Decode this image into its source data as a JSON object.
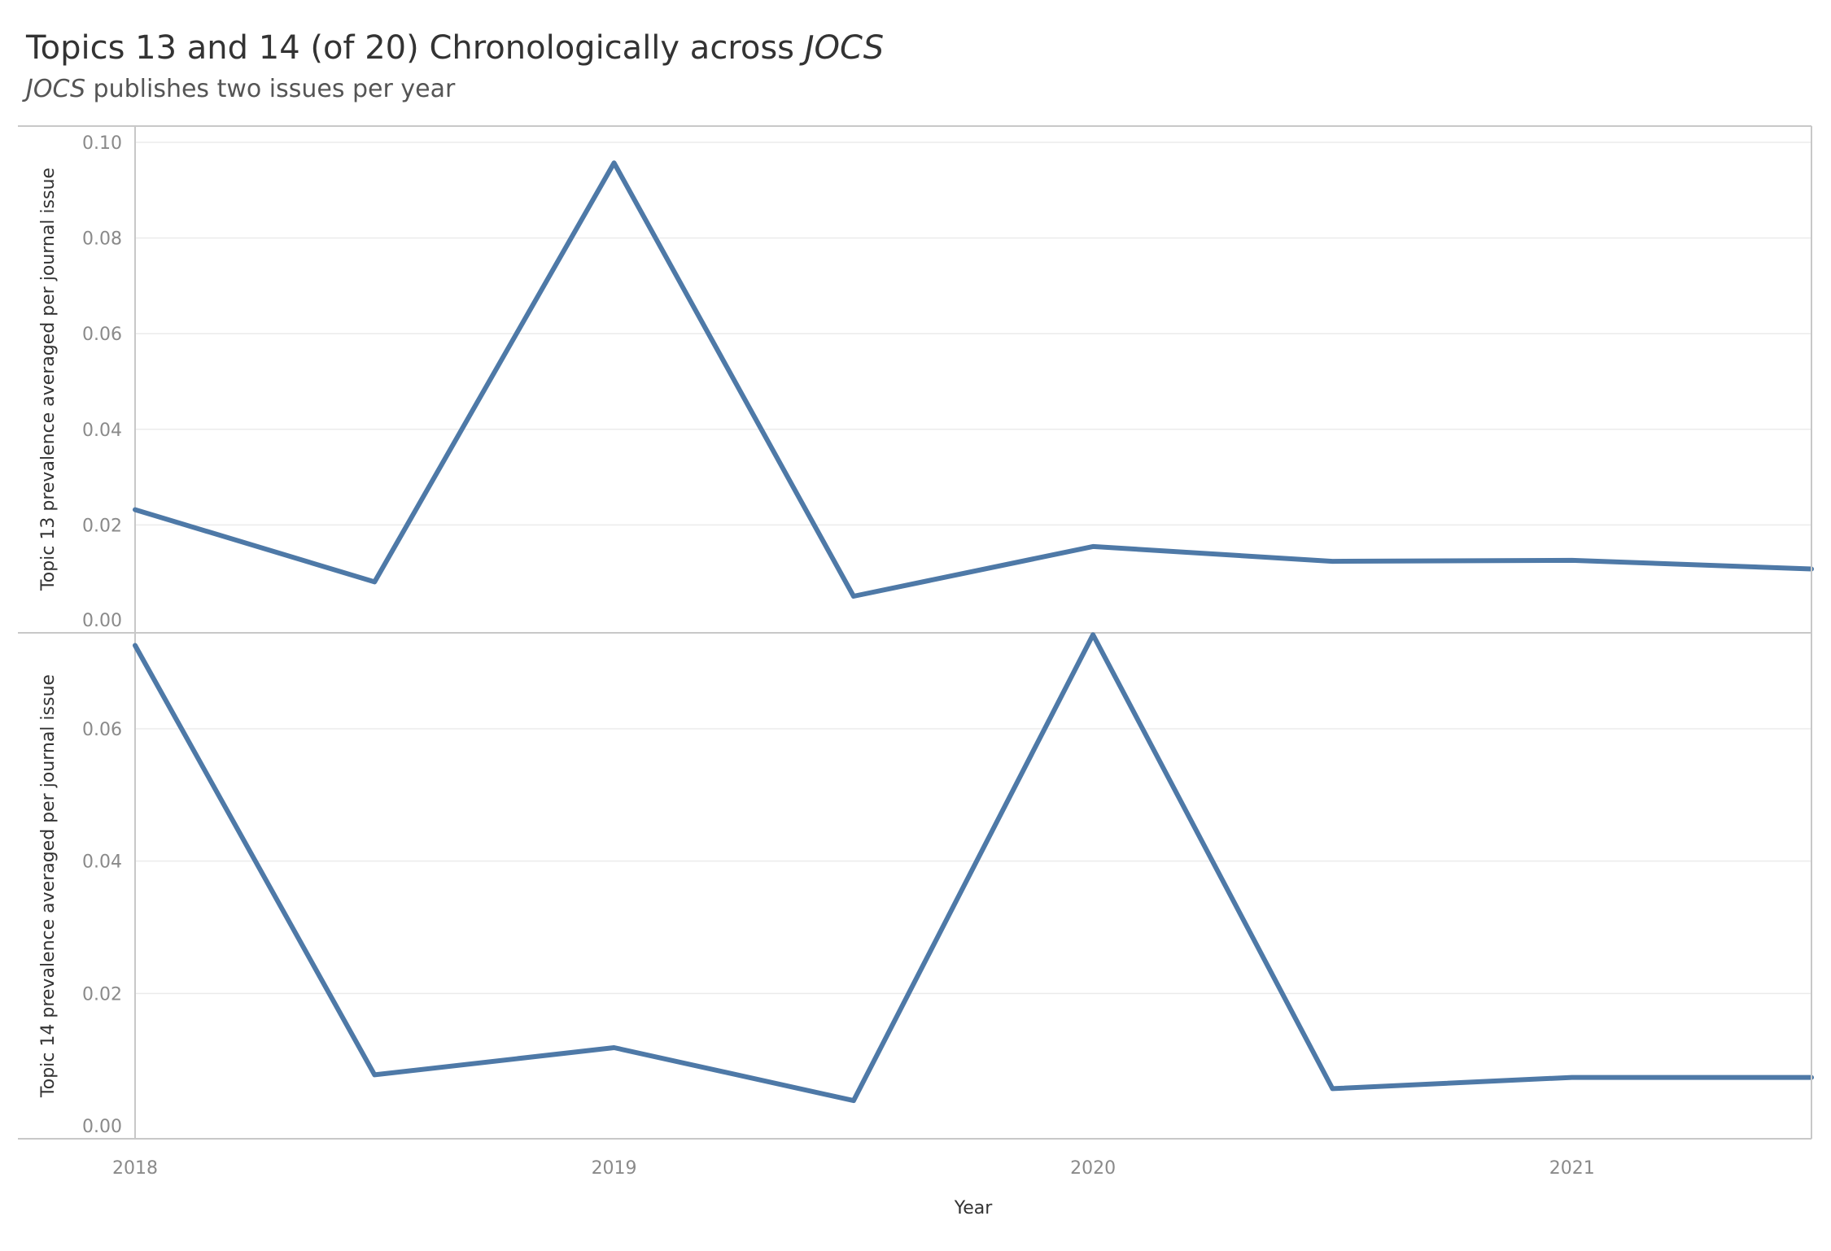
{
  "header": {
    "title_main": "Topics 13 and 14 (of 20) Chronologically across ",
    "title_italic": "JOCS",
    "subtitle_italic": "JOCS",
    "subtitle_rest": " publishes two issues per year"
  },
  "colors": {
    "line": "#4e79a7",
    "grid": "#ebebeb",
    "border": "#c8c8c8",
    "tick_text": "#8a8a8a",
    "axis_title": "#333333"
  },
  "chart_data": [
    {
      "type": "line",
      "ylabel": "Topic 13 prevalence averaged per journal issue",
      "ylim": [
        0.0,
        0.1
      ],
      "yticks": [
        "0.00",
        "0.02",
        "0.04",
        "0.06",
        "0.08",
        "0.10"
      ],
      "ytick_values": [
        0.0,
        0.02,
        0.04,
        0.06,
        0.08,
        0.1
      ],
      "grid": true,
      "x": [
        2018.0,
        2018.5,
        2019.0,
        2019.5,
        2020.0,
        2020.5,
        2021.0,
        2021.5
      ],
      "values": [
        0.0232,
        0.0081,
        0.0957,
        0.0051,
        0.0155,
        0.0124,
        0.0126,
        0.0108
      ]
    },
    {
      "type": "line",
      "ylabel": "Topic 14 prevalence averaged per journal issue",
      "ylim": [
        0.0,
        0.0745
      ],
      "yticks": [
        "0.00",
        "0.02",
        "0.04",
        "0.06"
      ],
      "ytick_values": [
        0.0,
        0.02,
        0.04,
        0.06
      ],
      "grid": true,
      "x": [
        2018.0,
        2018.5,
        2019.0,
        2019.5,
        2020.0,
        2020.5,
        2021.0,
        2021.5
      ],
      "values": [
        0.0726,
        0.0077,
        0.0118,
        0.0038,
        0.0742,
        0.0056,
        0.0073,
        0.0073
      ]
    }
  ],
  "x_axis": {
    "label": "Year",
    "xlim": [
      2018.0,
      2021.5
    ],
    "ticks": [
      "2018",
      "2019",
      "2020",
      "2021"
    ],
    "tick_values": [
      2018,
      2019,
      2020,
      2021
    ]
  }
}
